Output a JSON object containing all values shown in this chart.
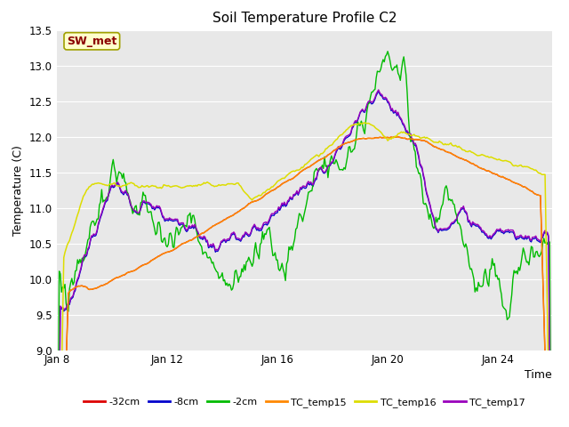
{
  "title": "Soil Temperature Profile C2",
  "xlabel": "Time",
  "ylabel": "Temperature (C)",
  "ylim": [
    9.0,
    13.5
  ],
  "yticks": [
    9.0,
    9.5,
    10.0,
    10.5,
    11.0,
    11.5,
    12.0,
    12.5,
    13.0,
    13.5
  ],
  "xtick_labels": [
    "Jan 8",
    "Jan 12",
    "Jan 16",
    "Jan 20",
    "Jan 24"
  ],
  "xtick_positions": [
    0,
    96,
    192,
    288,
    384
  ],
  "total_points": 432,
  "annotation_text": "SW_met",
  "annotation_color": "#8B0000",
  "annotation_bg": "#FFFFCC",
  "annotation_border": "#A0A000",
  "plot_bg_color": "#E8E8E8",
  "fig_bg_color": "#FFFFFF",
  "grid_color": "#FFFFFF",
  "colors": {
    "32cm": "#DD0000",
    "8cm": "#0000CC",
    "2cm": "#00BB00",
    "TC15": "#FF8800",
    "TC16": "#DDDD00",
    "TC17": "#9900BB"
  },
  "legend_labels": [
    "-32cm",
    "-8cm",
    "-2cm",
    "TC_temp15",
    "TC_temp16",
    "TC_temp17"
  ]
}
